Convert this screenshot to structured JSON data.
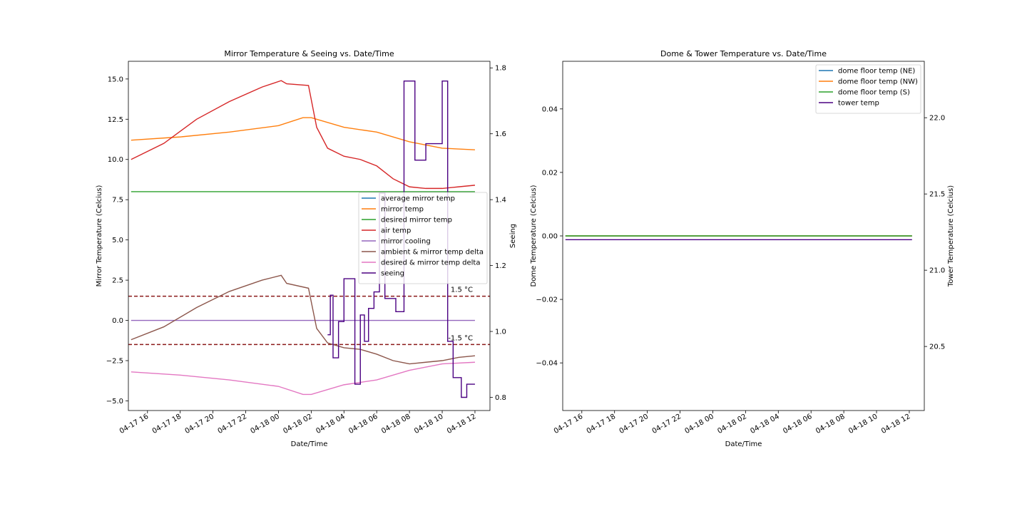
{
  "chart_data": [
    {
      "type": "line",
      "title": "Mirror Temperature & Seeing vs. Date/Time",
      "xlabel": "Date/Time",
      "ylabel": "Mirror Temperature (Celcius)",
      "ylabel_right": "Seeing",
      "xlim": [
        "2024-04-17T14:50",
        "2024-04-18T12:55"
      ],
      "ylim": [
        -5.6,
        16.1
      ],
      "ylim_right": [
        0.76,
        1.82
      ],
      "x_ticks": [
        "04-17 16",
        "04-17 18",
        "04-17 20",
        "04-17 22",
        "04-18 00",
        "04-18 02",
        "04-18 04",
        "04-18 06",
        "04-18 08",
        "04-18 10",
        "04-18 12"
      ],
      "y_ticks": [
        "−5.0",
        "−2.5",
        "0.0",
        "2.5",
        "5.0",
        "7.5",
        "10.0",
        "12.5",
        "15.0"
      ],
      "y_ticks_right": [
        "0.8",
        "1.0",
        "1.2",
        "1.4",
        "1.6",
        "1.8"
      ],
      "legend_position": "center-right",
      "reference_lines": [
        {
          "y": 1.5,
          "label": "1.5 °C",
          "color": "#8b1a1a"
        },
        {
          "y": -1.5,
          "label": "-1.5 °C",
          "color": "#8b1a1a"
        }
      ],
      "series": [
        {
          "name": "average mirror temp",
          "color": "#1f77b4",
          "axis": "left",
          "x": [],
          "y": []
        },
        {
          "name": "mirror temp",
          "color": "#ff7f0e",
          "axis": "left",
          "x": [
            "2024-04-17T15:00",
            "2024-04-17T18:00",
            "2024-04-17T21:00",
            "2024-04-18T00:00",
            "2024-04-18T01:30",
            "2024-04-18T02:00",
            "2024-04-18T04:00",
            "2024-04-18T06:00",
            "2024-04-18T08:00",
            "2024-04-18T10:00",
            "2024-04-18T12:00"
          ],
          "y": [
            11.2,
            11.4,
            11.7,
            12.1,
            12.6,
            12.6,
            12.0,
            11.7,
            11.1,
            10.7,
            10.6
          ]
        },
        {
          "name": "desired mirror temp",
          "color": "#2ca02c",
          "axis": "left",
          "x": [
            "2024-04-17T15:00",
            "2024-04-18T12:00"
          ],
          "y": [
            8.0,
            8.0
          ]
        },
        {
          "name": "air temp",
          "color": "#d62728",
          "axis": "left",
          "x": [
            "2024-04-17T15:00",
            "2024-04-17T17:00",
            "2024-04-17T19:00",
            "2024-04-17T21:00",
            "2024-04-17T23:00",
            "2024-04-18T00:10",
            "2024-04-18T00:30",
            "2024-04-18T01:50",
            "2024-04-18T02:20",
            "2024-04-18T03:00",
            "2024-04-18T04:00",
            "2024-04-18T05:00",
            "2024-04-18T06:00",
            "2024-04-18T07:00",
            "2024-04-18T08:00",
            "2024-04-18T09:00",
            "2024-04-18T10:00",
            "2024-04-18T11:00",
            "2024-04-18T12:00"
          ],
          "y": [
            10.0,
            11.0,
            12.5,
            13.6,
            14.5,
            14.9,
            14.7,
            14.6,
            12.0,
            10.7,
            10.2,
            10.0,
            9.6,
            8.8,
            8.3,
            8.2,
            8.2,
            8.3,
            8.4
          ]
        },
        {
          "name": "mirror cooling",
          "color": "#9467bd",
          "axis": "left",
          "x": [
            "2024-04-17T15:00",
            "2024-04-18T12:00"
          ],
          "y": [
            0.0,
            0.0
          ]
        },
        {
          "name": "ambient & mirror temp delta",
          "color": "#8c564b",
          "axis": "left",
          "x": [
            "2024-04-17T15:00",
            "2024-04-17T17:00",
            "2024-04-17T19:00",
            "2024-04-17T21:00",
            "2024-04-17T23:00",
            "2024-04-18T00:10",
            "2024-04-18T00:30",
            "2024-04-18T01:50",
            "2024-04-18T02:20",
            "2024-04-18T03:00",
            "2024-04-18T04:00",
            "2024-04-18T05:00",
            "2024-04-18T06:00",
            "2024-04-18T07:00",
            "2024-04-18T08:00",
            "2024-04-18T09:00",
            "2024-04-18T10:00",
            "2024-04-18T11:00",
            "2024-04-18T12:00"
          ],
          "y": [
            -1.2,
            -0.4,
            0.8,
            1.8,
            2.5,
            2.8,
            2.3,
            2.0,
            -0.5,
            -1.4,
            -1.7,
            -1.8,
            -2.1,
            -2.5,
            -2.7,
            -2.6,
            -2.5,
            -2.3,
            -2.2
          ]
        },
        {
          "name": "desired & mirror temp delta",
          "color": "#e377c2",
          "axis": "left",
          "x": [
            "2024-04-17T15:00",
            "2024-04-17T18:00",
            "2024-04-17T21:00",
            "2024-04-18T00:00",
            "2024-04-18T01:30",
            "2024-04-18T02:00",
            "2024-04-18T04:00",
            "2024-04-18T06:00",
            "2024-04-18T08:00",
            "2024-04-18T10:00",
            "2024-04-18T12:00"
          ],
          "y": [
            -3.2,
            -3.4,
            -3.7,
            -4.1,
            -4.6,
            -4.6,
            -4.0,
            -3.7,
            -3.1,
            -2.7,
            -2.6
          ]
        },
        {
          "name": "seeing",
          "color": "#4b0082",
          "axis": "right",
          "step": true,
          "x": [
            "2024-04-18T03:00",
            "2024-04-18T03:10",
            "2024-04-18T03:20",
            "2024-04-18T03:40",
            "2024-04-18T04:00",
            "2024-04-18T04:40",
            "2024-04-18T05:00",
            "2024-04-18T05:15",
            "2024-04-18T05:30",
            "2024-04-18T05:50",
            "2024-04-18T06:10",
            "2024-04-18T06:30",
            "2024-04-18T07:10",
            "2024-04-18T07:40",
            "2024-04-18T08:20",
            "2024-04-18T08:50",
            "2024-04-18T09:00",
            "2024-04-18T10:00",
            "2024-04-18T10:20",
            "2024-04-18T10:40",
            "2024-04-18T11:10",
            "2024-04-18T11:30",
            "2024-04-18T12:00"
          ],
          "y": [
            0.99,
            1.11,
            0.92,
            1.03,
            1.16,
            0.84,
            1.05,
            0.97,
            1.07,
            1.12,
            1.42,
            1.1,
            1.06,
            1.76,
            1.52,
            1.52,
            1.57,
            1.76,
            0.97,
            0.86,
            0.8,
            0.84,
            0.84
          ]
        }
      ]
    },
    {
      "type": "line",
      "title": "Dome & Tower Temperature vs. Date/Time",
      "xlabel": "Date/Time",
      "ylabel": "Dome Temperature (Celcius)",
      "ylabel_right": "Tower Temperature (Celcius)",
      "xlim": [
        "2024-04-17T14:50",
        "2024-04-18T12:55"
      ],
      "ylim": [
        -0.055,
        0.055
      ],
      "ylim_right": [
        20.08,
        22.37
      ],
      "x_ticks": [
        "04-17 16",
        "04-17 18",
        "04-17 20",
        "04-17 22",
        "04-18 00",
        "04-18 02",
        "04-18 04",
        "04-18 06",
        "04-18 08",
        "04-18 10",
        "04-18 12"
      ],
      "y_ticks": [
        "−0.04",
        "−0.02",
        "0.00",
        "0.02",
        "0.04"
      ],
      "y_ticks_right": [
        "20.5",
        "21.0",
        "21.5",
        "22.0"
      ],
      "legend_position": "top-right",
      "series": [
        {
          "name": "dome floor temp (NE)",
          "color": "#1f77b4",
          "axis": "left",
          "x": [
            "2024-04-17T15:00",
            "2024-04-18T12:10"
          ],
          "y": [
            0.0,
            0.0
          ]
        },
        {
          "name": "dome floor temp (NW)",
          "color": "#ff7f0e",
          "axis": "left",
          "x": [
            "2024-04-17T15:00",
            "2024-04-18T12:10"
          ],
          "y": [
            0.0,
            0.0
          ]
        },
        {
          "name": "dome floor temp (S)",
          "color": "#2ca02c",
          "axis": "left",
          "x": [
            "2024-04-17T15:00",
            "2024-04-18T12:10"
          ],
          "y": [
            0.0,
            0.0
          ]
        },
        {
          "name": "tower temp",
          "color": "#4b0082",
          "axis": "right",
          "x": [
            "2024-04-17T15:00",
            "2024-04-18T12:10"
          ],
          "y": [
            21.2,
            21.2
          ]
        }
      ]
    }
  ]
}
